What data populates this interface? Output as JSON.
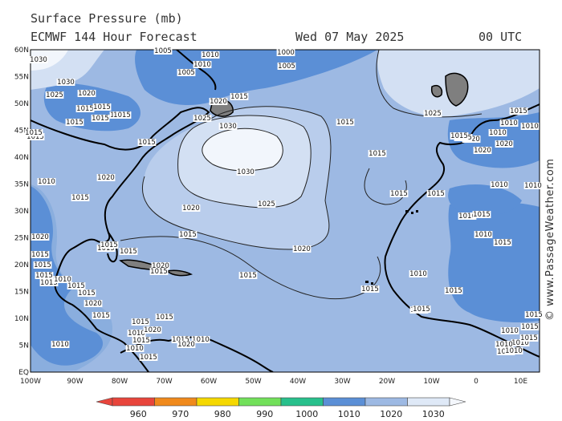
{
  "header": {
    "title": "Surface Pressure (mb)",
    "model": "ECMWF 144 Hour Forecast",
    "date": "Wed 07 May 2025",
    "time": "00 UTC"
  },
  "credit": "© www.PassageWeather.com",
  "map": {
    "lat_labels": [
      "60N",
      "55N",
      "50N",
      "45N",
      "40N",
      "35N",
      "30N",
      "25N",
      "20N",
      "15N",
      "10N",
      "5N",
      "EQ"
    ],
    "lon_labels": [
      "100W",
      "90W",
      "80W",
      "70W",
      "60W",
      "50W",
      "40W",
      "30W",
      "20W",
      "10W",
      "0",
      "10E"
    ],
    "isobar_labels": [
      {
        "t": "1030"
      },
      {
        "t": "1030"
      },
      {
        "t": "1025"
      },
      {
        "t": "1020"
      },
      {
        "t": "1015"
      },
      {
        "t": "1015"
      },
      {
        "t": "1015"
      },
      {
        "t": "1010"
      },
      {
        "t": "1005"
      },
      {
        "t": "1010"
      },
      {
        "t": "1005"
      },
      {
        "t": "1010"
      },
      {
        "t": "1000"
      },
      {
        "t": "1005"
      },
      {
        "t": "1020"
      },
      {
        "t": "1015"
      },
      {
        "t": "1025"
      },
      {
        "t": "1030"
      },
      {
        "t": "1030"
      },
      {
        "t": "1025"
      },
      {
        "t": "1020"
      },
      {
        "t": "1015"
      },
      {
        "t": "1015"
      },
      {
        "t": "1015"
      },
      {
        "t": "1020"
      },
      {
        "t": "1010"
      },
      {
        "t": "1015"
      },
      {
        "t": "1015"
      },
      {
        "t": "1015"
      },
      {
        "t": "1015"
      },
      {
        "t": "1015"
      },
      {
        "t": "1015"
      },
      {
        "t": "1015"
      },
      {
        "t": "1015"
      },
      {
        "t": "1015"
      },
      {
        "t": "1020"
      },
      {
        "t": "1010"
      },
      {
        "t": "1015"
      },
      {
        "t": "1015"
      },
      {
        "t": "1020"
      },
      {
        "t": "1025"
      },
      {
        "t": "1020"
      },
      {
        "t": "1025"
      },
      {
        "t": "1020"
      },
      {
        "t": "1010"
      },
      {
        "t": "1015"
      },
      {
        "t": "1010"
      },
      {
        "t": "1015"
      },
      {
        "t": "1010"
      },
      {
        "t": "1010"
      },
      {
        "t": "1015"
      },
      {
        "t": "1010"
      },
      {
        "t": "1010"
      },
      {
        "t": "1015"
      },
      {
        "t": "1010"
      },
      {
        "t": "1010"
      },
      {
        "t": "1015"
      },
      {
        "t": "1010"
      },
      {
        "t": "1015"
      },
      {
        "t": "1010"
      },
      {
        "t": "1015"
      },
      {
        "t": "1010"
      },
      {
        "t": "1010"
      },
      {
        "t": "1015"
      },
      {
        "t": "1010"
      },
      {
        "t": "1015"
      },
      {
        "t": "1010"
      },
      {
        "t": "1015"
      },
      {
        "t": "1020"
      },
      {
        "t": "1015"
      },
      {
        "t": "1010"
      },
      {
        "t": "1020"
      },
      {
        "t": "1015"
      },
      {
        "t": "1020"
      },
      {
        "t": "1015"
      },
      {
        "t": "1010"
      },
      {
        "t": "1015"
      },
      {
        "t": "1015"
      },
      {
        "t": "1015"
      },
      {
        "t": "1010"
      },
      {
        "t": "1015"
      },
      {
        "t": "1015"
      },
      {
        "t": "1015"
      },
      {
        "t": "1015"
      },
      {
        "t": "1015"
      },
      {
        "t": "1020"
      },
      {
        "t": "1015"
      },
      {
        "t": "1015"
      },
      {
        "t": "1020"
      },
      {
        "t": "1015"
      },
      {
        "t": "1015"
      }
    ]
  },
  "colorbar": {
    "labels": [
      "960",
      "970",
      "980",
      "990",
      "1000",
      "1010",
      "1020",
      "1030"
    ],
    "colors": [
      "#e8453c",
      "#f08a1c",
      "#f5d800",
      "#72e05a",
      "#28c08c",
      "#5b8fd6",
      "#9db9e3",
      "#dfe9f7"
    ]
  },
  "fill_colors": {
    "band_1005_1010": "#5b8fd6",
    "band_1010_1015": "#8aaede",
    "band_1015_1020": "#9db9e3",
    "band_1020_1025": "#b9cdec",
    "band_1025_1030": "#d3e0f3",
    "band_above_1030": "#f2f6fc",
    "land": "#7f7f7f"
  }
}
